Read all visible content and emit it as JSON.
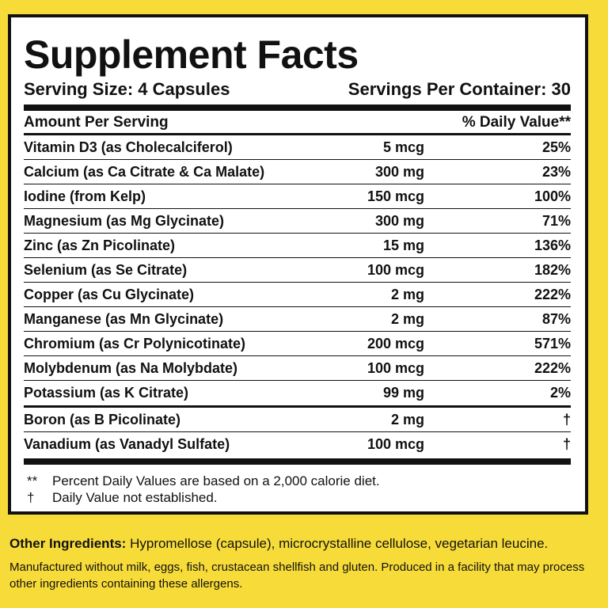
{
  "title": "Supplement Facts",
  "serving_size": "Serving Size: 4 Capsules",
  "servings_per_container": "Servings Per Container: 30",
  "header": {
    "amount_per_serving": "Amount Per Serving",
    "daily_value": "% Daily Value**"
  },
  "nutrients": [
    {
      "name": "Vitamin D3 (as Cholecalciferol)",
      "amount": "5 mcg",
      "dv": "25%"
    },
    {
      "name": "Calcium (as Ca Citrate & Ca Malate)",
      "amount": "300 mg",
      "dv": "23%"
    },
    {
      "name": "Iodine (from Kelp)",
      "amount": "150 mcg",
      "dv": "100%"
    },
    {
      "name": "Magnesium (as Mg Glycinate)",
      "amount": "300 mg",
      "dv": "71%"
    },
    {
      "name": "Zinc (as Zn Picolinate)",
      "amount": "15 mg",
      "dv": "136%"
    },
    {
      "name": "Selenium (as Se Citrate)",
      "amount": "100 mcg",
      "dv": "182%"
    },
    {
      "name": "Copper (as Cu Glycinate)",
      "amount": "2 mg",
      "dv": "222%"
    },
    {
      "name": "Manganese (as Mn Glycinate)",
      "amount": "2 mg",
      "dv": "87%"
    },
    {
      "name": "Chromium (as Cr Polynicotinate)",
      "amount": "200 mcg",
      "dv": "571%"
    },
    {
      "name": "Molybdenum (as Na Molybdate)",
      "amount": "100 mcg",
      "dv": "222%"
    },
    {
      "name": "Potassium (as K Citrate)",
      "amount": "99 mg",
      "dv": "2%"
    }
  ],
  "other_nutrients": [
    {
      "name": "Boron (as B Picolinate)",
      "amount": "2 mg",
      "dv": "†"
    },
    {
      "name": "Vanadium (as Vanadyl Sulfate)",
      "amount": "100 mcg",
      "dv": "†"
    }
  ],
  "footnotes": [
    {
      "symbol": "**",
      "text": "Percent Daily Values are based on a 2,000 calorie diet."
    },
    {
      "symbol": "†",
      "text": "Daily Value not established."
    }
  ],
  "other_ingredients": {
    "label": "Other Ingredients:",
    "text": " Hypromellose (capsule), microcrystalline cellulose, vegetarian leucine."
  },
  "manufacturing_note": "Manufactured without milk, eggs, fish, crustacean shellfish and gluten. Produced in a facility that may process other ingredients containing these allergens."
}
